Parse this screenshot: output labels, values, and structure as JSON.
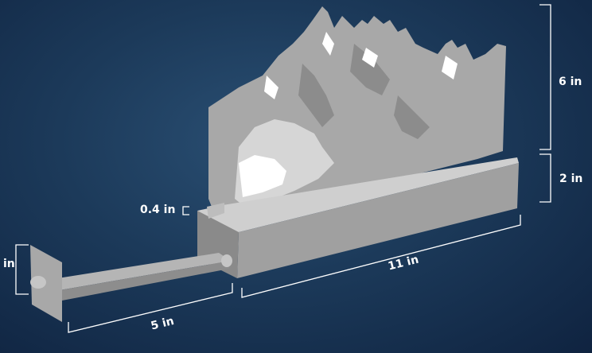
{
  "colors": {
    "background": "#1c3a5a",
    "model_light": "#bdbdbd",
    "model_mid": "#9e9e9e",
    "model_dark": "#6f6f6f",
    "dimension": "#ffffff"
  },
  "dimensions": {
    "height_panel": "6 in",
    "height_base": "2 in",
    "slot_width": "0.4 in",
    "length": "11 in",
    "arm_length": "5 in",
    "plate_height": "in"
  }
}
